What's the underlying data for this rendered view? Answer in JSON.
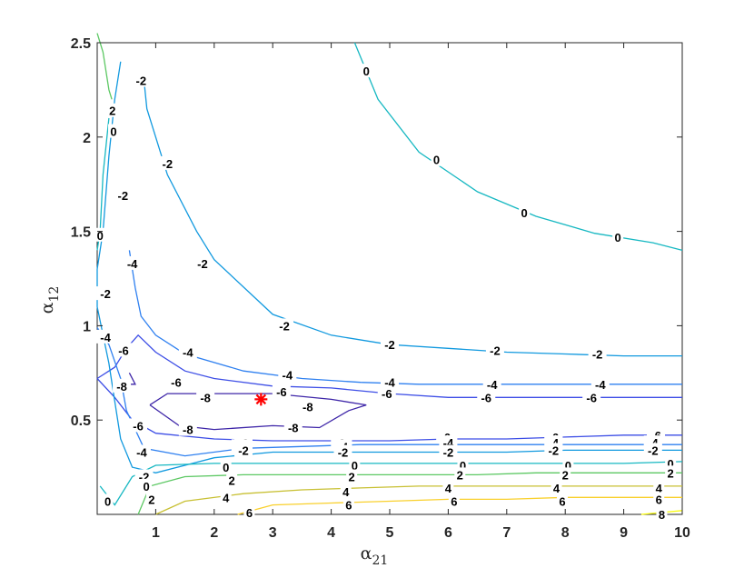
{
  "chart_data": {
    "type": "contour",
    "xlabel": "α",
    "xlabel_sub": "21",
    "ylabel": "α",
    "ylabel_sub": "12",
    "xlim": [
      0,
      10
    ],
    "ylim": [
      0,
      2.5
    ],
    "x_ticks": [
      "1",
      "2",
      "3",
      "4",
      "5",
      "6",
      "7",
      "8",
      "9",
      "10"
    ],
    "y_ticks": [
      "0.5",
      "1",
      "1.5",
      "2",
      "2.5"
    ],
    "colormap": "parula",
    "minimum_marker": {
      "x": 2.8,
      "y": 0.61,
      "symbol": "*",
      "color": "#ff0000"
    },
    "levels": [
      {
        "level": -8,
        "color": "#3e26a8",
        "points": [
          [
            0.9,
            0.58
          ],
          [
            1.2,
            0.64
          ],
          [
            2.0,
            0.64
          ],
          [
            3.0,
            0.64
          ],
          [
            4.0,
            0.61
          ],
          [
            4.6,
            0.58
          ],
          [
            4.3,
            0.55
          ],
          [
            3.8,
            0.46
          ],
          [
            3.0,
            0.47
          ],
          [
            2.0,
            0.45
          ],
          [
            1.4,
            0.47
          ],
          [
            0.9,
            0.58
          ]
        ],
        "labels": [
          [
            1.85,
            0.62,
            "-8"
          ],
          [
            3.6,
            0.57,
            "-8"
          ],
          [
            1.55,
            0.45,
            "-8"
          ],
          [
            3.35,
            0.46,
            "-8"
          ]
        ]
      },
      {
        "level": -8,
        "color": "#3e26a8",
        "points": [
          [
            0.55,
            0.75
          ],
          [
            0.65,
            0.69
          ],
          [
            0.45,
            0.69
          ]
        ],
        "labels": [
          [
            0.42,
            0.68,
            "-8"
          ]
        ]
      },
      {
        "level": -6,
        "color": "#3d4ee6",
        "points": [
          [
            0.0,
            0.72
          ],
          [
            0.3,
            0.78
          ],
          [
            0.5,
            0.88
          ],
          [
            0.7,
            0.95
          ],
          [
            1.0,
            0.86
          ],
          [
            1.5,
            0.76
          ],
          [
            2.0,
            0.72
          ],
          [
            3.0,
            0.68
          ],
          [
            4.0,
            0.67
          ],
          [
            5.0,
            0.64
          ],
          [
            6.0,
            0.62
          ],
          [
            7.0,
            0.62
          ],
          [
            8.0,
            0.62
          ],
          [
            9.0,
            0.62
          ],
          [
            10.0,
            0.62
          ]
        ],
        "labels": [
          [
            0.45,
            0.87,
            "-6"
          ],
          [
            1.35,
            0.7,
            "-6"
          ],
          [
            3.15,
            0.65,
            "-6"
          ],
          [
            4.95,
            0.64,
            "-6"
          ],
          [
            6.65,
            0.62,
            "-6"
          ],
          [
            8.45,
            0.62,
            "-6"
          ]
        ]
      },
      {
        "level": -6,
        "color": "#3d4ee6",
        "points": [
          [
            0.0,
            0.72
          ],
          [
            0.3,
            0.62
          ],
          [
            0.6,
            0.5
          ],
          [
            1.0,
            0.43
          ],
          [
            2.0,
            0.4
          ],
          [
            3.0,
            0.39
          ],
          [
            4.0,
            0.39
          ],
          [
            5.0,
            0.39
          ],
          [
            6.0,
            0.4
          ],
          [
            7.0,
            0.4
          ],
          [
            8.0,
            0.41
          ],
          [
            9.0,
            0.42
          ],
          [
            10.0,
            0.42
          ]
        ],
        "labels": [
          [
            0.7,
            0.47,
            "-6"
          ],
          [
            2.5,
            0.38,
            "-6"
          ],
          [
            4.15,
            0.38,
            "-6"
          ],
          [
            5.95,
            0.41,
            "-6"
          ],
          [
            7.8,
            0.41,
            "-6"
          ],
          [
            9.55,
            0.42,
            "-6"
          ]
        ]
      },
      {
        "level": -4,
        "color": "#2f80f0",
        "points": [
          [
            0.55,
            1.4
          ],
          [
            0.65,
            1.2
          ],
          [
            0.75,
            1.05
          ],
          [
            1.0,
            0.95
          ],
          [
            1.5,
            0.85
          ],
          [
            2.5,
            0.76
          ],
          [
            3.5,
            0.72
          ],
          [
            4.5,
            0.7
          ],
          [
            5.5,
            0.69
          ],
          [
            6.5,
            0.69
          ],
          [
            7.5,
            0.69
          ],
          [
            8.5,
            0.69
          ],
          [
            10.0,
            0.69
          ]
        ],
        "labels": [
          [
            0.6,
            1.33,
            "-4"
          ],
          [
            1.55,
            0.86,
            "-4"
          ],
          [
            3.25,
            0.74,
            "-4"
          ],
          [
            5.0,
            0.7,
            "-4"
          ],
          [
            6.75,
            0.69,
            "-4"
          ],
          [
            8.6,
            0.69,
            "-4"
          ]
        ]
      },
      {
        "level": -4,
        "color": "#2f80f0",
        "points": [
          [
            0.0,
            0.99
          ],
          [
            0.2,
            0.9
          ],
          [
            0.4,
            0.72
          ],
          [
            0.5,
            0.55
          ],
          [
            0.8,
            0.35
          ],
          [
            1.5,
            0.31
          ],
          [
            2.5,
            0.35
          ],
          [
            3.5,
            0.36
          ],
          [
            4.5,
            0.37
          ],
          [
            5.5,
            0.37
          ],
          [
            6.5,
            0.37
          ],
          [
            7.5,
            0.37
          ],
          [
            8.5,
            0.37
          ],
          [
            10.0,
            0.37
          ]
        ],
        "labels": [
          [
            0.14,
            0.94,
            "-4"
          ],
          [
            0.76,
            0.33,
            "-4"
          ],
          [
            2.45,
            0.36,
            "-4"
          ],
          [
            4.2,
            0.36,
            "-4"
          ],
          [
            6.0,
            0.38,
            "-4"
          ],
          [
            7.8,
            0.38,
            "-4"
          ],
          [
            9.5,
            0.38,
            "-4"
          ]
        ]
      },
      {
        "level": -2,
        "color": "#1199df",
        "points": [
          [
            0.8,
            2.3
          ],
          [
            0.85,
            2.15
          ],
          [
            1.2,
            1.8
          ],
          [
            1.7,
            1.5
          ],
          [
            2.0,
            1.35
          ],
          [
            3.0,
            1.06
          ],
          [
            4.0,
            0.95
          ],
          [
            5.0,
            0.9
          ],
          [
            6.0,
            0.88
          ],
          [
            7.0,
            0.86
          ],
          [
            8.0,
            0.85
          ],
          [
            9.0,
            0.84
          ],
          [
            10.0,
            0.84
          ]
        ],
        "labels": [
          [
            0.75,
            2.3,
            "-2"
          ],
          [
            1.2,
            1.86,
            "-2"
          ],
          [
            1.8,
            1.33,
            "-2"
          ],
          [
            3.2,
            1.0,
            "-2"
          ],
          [
            5.0,
            0.9,
            "-2"
          ],
          [
            6.8,
            0.87,
            "-2"
          ],
          [
            8.55,
            0.85,
            "-2"
          ]
        ]
      },
      {
        "level": -2,
        "color": "#1199df",
        "points": [
          [
            0.4,
            2.4
          ],
          [
            0.3,
            2.2
          ],
          [
            0.2,
            1.9
          ],
          [
            0.1,
            1.5
          ],
          [
            0.0,
            1.3
          ],
          [
            0.0,
            1.1
          ],
          [
            0.2,
            0.8
          ],
          [
            0.3,
            0.6
          ],
          [
            0.4,
            0.4
          ],
          [
            0.6,
            0.25
          ],
          [
            1.0,
            0.22
          ],
          [
            2.0,
            0.3
          ],
          [
            3.0,
            0.33
          ],
          [
            4.0,
            0.33
          ],
          [
            5.0,
            0.33
          ],
          [
            6.0,
            0.33
          ],
          [
            7.0,
            0.33
          ],
          [
            8.0,
            0.34
          ],
          [
            9.0,
            0.34
          ],
          [
            10.0,
            0.34
          ]
        ],
        "labels": [
          [
            0.44,
            1.69,
            "-2"
          ],
          [
            0.14,
            1.17,
            "-2"
          ],
          [
            0.8,
            0.2,
            "-2"
          ],
          [
            2.5,
            0.34,
            "-2"
          ],
          [
            4.2,
            0.33,
            "-2"
          ],
          [
            6.0,
            0.33,
            "-2"
          ],
          [
            7.8,
            0.34,
            "-2"
          ],
          [
            9.5,
            0.34,
            "-2"
          ]
        ]
      },
      {
        "level": 0,
        "color": "#17b8c2",
        "points": [
          [
            4.4,
            2.5
          ],
          [
            4.8,
            2.2
          ],
          [
            5.5,
            1.92
          ],
          [
            6.5,
            1.71
          ],
          [
            7.5,
            1.58
          ],
          [
            8.5,
            1.49
          ],
          [
            9.5,
            1.44
          ],
          [
            10.0,
            1.4
          ]
        ],
        "labels": [
          [
            4.6,
            2.35,
            "0"
          ],
          [
            5.8,
            1.88,
            "0"
          ],
          [
            7.3,
            1.6,
            "0"
          ],
          [
            8.9,
            1.47,
            "0"
          ]
        ]
      },
      {
        "level": 0,
        "color": "#17b8c2",
        "points": [
          [
            0.2,
            2.1
          ],
          [
            0.1,
            1.8
          ],
          [
            0.05,
            1.5
          ],
          [
            0.0,
            1.4
          ]
        ],
        "labels": [
          [
            0.28,
            2.03,
            "0"
          ],
          [
            0.05,
            1.48,
            "0"
          ]
        ]
      },
      {
        "level": 0,
        "color": "#17b8c2",
        "points": [
          [
            0.05,
            0.15
          ],
          [
            0.3,
            0.05
          ],
          [
            0.6,
            0.2
          ],
          [
            1.0,
            0.26
          ],
          [
            2.0,
            0.27
          ],
          [
            3.0,
            0.27
          ],
          [
            4.0,
            0.27
          ],
          [
            5.0,
            0.27
          ],
          [
            6.0,
            0.27
          ],
          [
            7.0,
            0.27
          ],
          [
            8.0,
            0.27
          ],
          [
            9.0,
            0.27
          ],
          [
            10.0,
            0.28
          ]
        ],
        "labels": [
          [
            0.18,
            0.07,
            "0"
          ],
          [
            0.84,
            0.15,
            "0"
          ],
          [
            2.2,
            0.25,
            "0"
          ],
          [
            4.4,
            0.26,
            "0"
          ],
          [
            6.25,
            0.26,
            "0"
          ],
          [
            8.05,
            0.26,
            "0"
          ],
          [
            9.8,
            0.27,
            "0"
          ]
        ]
      },
      {
        "level": 2,
        "color": "#5cc863",
        "points": [
          [
            0.0,
            2.55
          ],
          [
            0.1,
            2.45
          ],
          [
            0.2,
            2.25
          ],
          [
            0.25,
            2.2
          ]
        ],
        "labels": [
          [
            0.26,
            2.14,
            "2"
          ]
        ]
      },
      {
        "level": 2,
        "color": "#5cc863",
        "points": [
          [
            0.7,
            0.0
          ],
          [
            0.9,
            0.15
          ],
          [
            1.5,
            0.2
          ],
          [
            2.5,
            0.21
          ],
          [
            3.5,
            0.21
          ],
          [
            4.5,
            0.21
          ],
          [
            5.5,
            0.21
          ],
          [
            6.5,
            0.21
          ],
          [
            7.5,
            0.22
          ],
          [
            8.5,
            0.22
          ],
          [
            10.0,
            0.22
          ]
        ],
        "labels": [
          [
            0.93,
            0.08,
            "2"
          ],
          [
            2.3,
            0.18,
            "2"
          ],
          [
            4.35,
            0.2,
            "2"
          ],
          [
            6.2,
            0.21,
            "2"
          ],
          [
            8.0,
            0.21,
            "2"
          ],
          [
            9.8,
            0.22,
            "2"
          ]
        ]
      },
      {
        "level": 4,
        "color": "#c8c033",
        "points": [
          [
            1.0,
            0.0
          ],
          [
            1.5,
            0.07
          ],
          [
            2.5,
            0.11
          ],
          [
            3.5,
            0.13
          ],
          [
            4.5,
            0.14
          ],
          [
            5.5,
            0.15
          ],
          [
            6.5,
            0.15
          ],
          [
            7.5,
            0.15
          ],
          [
            8.5,
            0.15
          ],
          [
            10.0,
            0.15
          ]
        ],
        "labels": [
          [
            2.2,
            0.09,
            "4"
          ],
          [
            4.25,
            0.12,
            "4"
          ],
          [
            6.0,
            0.14,
            "4"
          ],
          [
            7.85,
            0.14,
            "4"
          ],
          [
            9.6,
            0.14,
            "4"
          ]
        ]
      },
      {
        "level": 6,
        "color": "#f9d02c",
        "points": [
          [
            2.4,
            0.0
          ],
          [
            3.0,
            0.05
          ],
          [
            4.0,
            0.06
          ],
          [
            5.0,
            0.07
          ],
          [
            6.0,
            0.08
          ],
          [
            7.0,
            0.08
          ],
          [
            8.0,
            0.09
          ],
          [
            9.0,
            0.09
          ],
          [
            10.0,
            0.09
          ]
        ],
        "labels": [
          [
            2.6,
            0.01,
            "6"
          ],
          [
            4.3,
            0.05,
            "6"
          ],
          [
            6.1,
            0.07,
            "6"
          ],
          [
            7.95,
            0.07,
            "6"
          ],
          [
            9.6,
            0.08,
            "6"
          ]
        ]
      },
      {
        "level": 8,
        "color": "#f9fb0e",
        "points": [
          [
            9.3,
            0.0
          ],
          [
            10.0,
            0.02
          ]
        ],
        "labels": [
          [
            9.65,
            0.0,
            "8"
          ]
        ]
      }
    ]
  }
}
